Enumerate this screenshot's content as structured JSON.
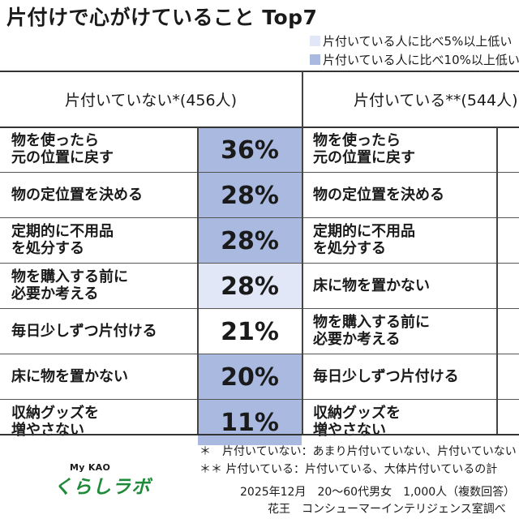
{
  "title": "片付けで心がけていること Top7",
  "legend": {
    "light_label": "片付いている人に比べ5%以上低い",
    "strong_label": "片付いている人に比べ10%以上低い",
    "light_color": "#e1e7f6",
    "strong_color": "#a9b9e0"
  },
  "headers": {
    "not_tidy": "片付いていない*(456人)",
    "tidy": "片付いている**(544人)"
  },
  "not_tidy_rows": [
    {
      "item": "物を使ったら\n元の位置に戻す",
      "percent": "36%",
      "highlight": "strong"
    },
    {
      "item": "物の定位置を決める",
      "percent": "28%",
      "highlight": "strong"
    },
    {
      "item": "定期的に不用品\nを処分する",
      "percent": "28%",
      "highlight": "strong"
    },
    {
      "item": "物を購入する前に\n必要か考える",
      "percent": "28%",
      "highlight": "light"
    },
    {
      "item": "毎日少しずつ片付ける",
      "percent": "21%",
      "highlight": "none"
    },
    {
      "item": "床に物を置かない",
      "percent": "20%",
      "highlight": "strong"
    },
    {
      "item": "収納グッズを\n増やさない",
      "percent": "11%",
      "highlight": "strong"
    }
  ],
  "tidy_rows": [
    {
      "item": "物を使ったら\n元の位置に戻す"
    },
    {
      "item": "物の定位置を決める"
    },
    {
      "item": "定期的に不用品\nを処分する"
    },
    {
      "item": "床に物を置かない"
    },
    {
      "item": "物を購入する前に\n必要か考える"
    },
    {
      "item": "毎日少しずつ片付ける"
    },
    {
      "item": "収納グッズを\n増やさない"
    }
  ],
  "notes": {
    "note1": "＊　片付いていない：あまり片付いていない、片付いていない",
    "note2": "＊＊ 片付いている：片付いている、大体片付いているの計"
  },
  "survey": {
    "line1": "2025年12月　20～60代男女　1,000人（複数回答）",
    "line2": "花王　コンシューマーインテリジェンス室調べ"
  },
  "logo": {
    "small": "My KAO",
    "big": "くらしラボ",
    "color": "#1f8a3a"
  }
}
